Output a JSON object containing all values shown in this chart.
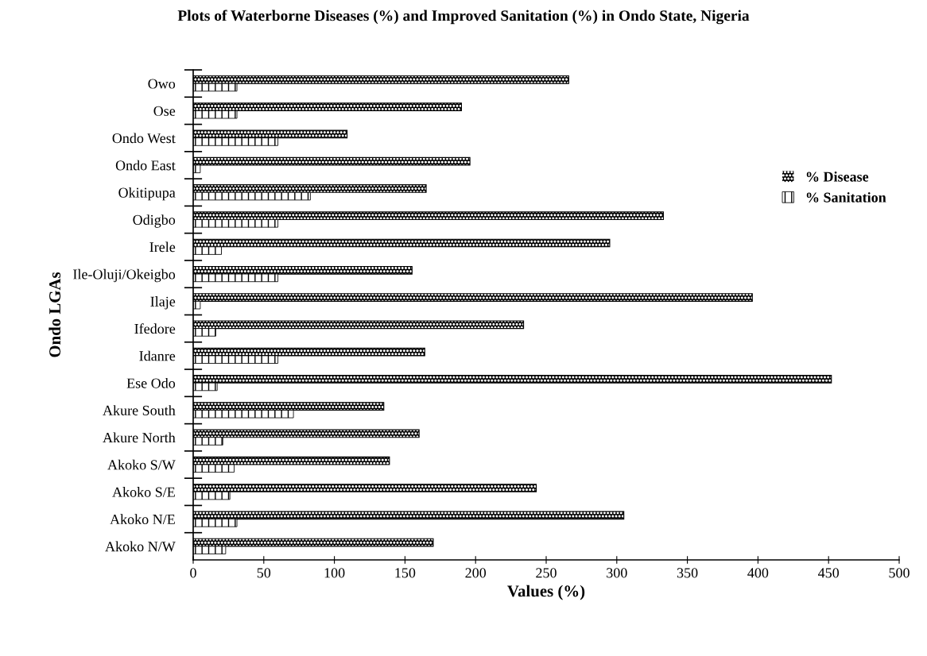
{
  "chart_data": {
    "type": "bar",
    "orientation": "horizontal",
    "title": "Plots of Waterborne Diseases (%) and Improved Sanitation (%) in Ondo State, Nigeria",
    "xlabel": "Values (%)",
    "ylabel": "Ondo LGAs",
    "categories": [
      "Owo",
      "Ose",
      "Ondo West",
      "Ondo East",
      "Okitipupa",
      "Odigbo",
      "Irele",
      "Ile-Oluji/Okeigbo",
      "Ilaje",
      "Ifedore",
      "Idanre",
      "Ese Odo",
      "Akure South",
      "Akure North",
      "Akoko S/W",
      "Akoko S/E",
      "Akoko N/E",
      "Akoko N/W"
    ],
    "series": [
      {
        "name": "% Disease",
        "color": "#000000",
        "values": [
          266,
          190,
          109,
          196,
          165,
          333,
          295,
          155,
          396,
          234,
          164,
          452,
          135,
          160,
          139,
          243,
          305,
          170
        ]
      },
      {
        "name": "% Sanitation",
        "color": "#000000",
        "values": [
          31,
          31,
          60,
          5,
          83,
          60,
          20,
          60,
          5,
          16,
          60,
          17,
          71,
          21,
          29,
          26,
          31,
          23
        ]
      }
    ],
    "xlim": [
      0,
      500
    ],
    "xticks": [
      0,
      50,
      100,
      150,
      200,
      250,
      300,
      350,
      400,
      450,
      500
    ],
    "grid": false,
    "legend": "right"
  }
}
